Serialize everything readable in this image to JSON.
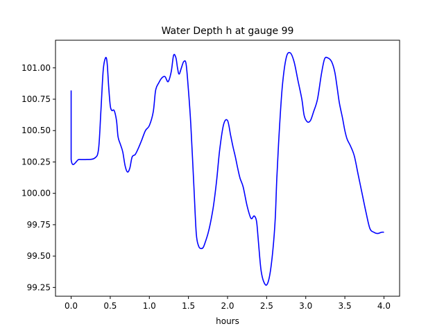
{
  "chart_data": {
    "type": "line",
    "title": "Water Depth h at gauge 99",
    "xlabel": "hours",
    "ylabel": "",
    "xlim": [
      -0.2,
      4.2
    ],
    "ylim": [
      99.18,
      101.22
    ],
    "xticks": [
      0.0,
      0.5,
      1.0,
      1.5,
      2.0,
      2.5,
      3.0,
      3.5,
      4.0
    ],
    "xtick_labels": [
      "0.0",
      "0.5",
      "1.0",
      "1.5",
      "2.0",
      "2.5",
      "3.0",
      "3.5",
      "4.0"
    ],
    "yticks": [
      99.25,
      99.5,
      99.75,
      100.0,
      100.25,
      100.5,
      100.75,
      101.0
    ],
    "ytick_labels": [
      "99.25",
      "99.50",
      "99.75",
      "100.00",
      "100.25",
      "100.50",
      "100.75",
      "101.00"
    ],
    "grid": false,
    "series": [
      {
        "color": "#0000ff",
        "x": [
          0.0,
          0.0,
          0.1,
          0.2,
          0.3,
          0.35,
          0.38,
          0.41,
          0.44,
          0.46,
          0.48,
          0.5,
          0.52,
          0.55,
          0.58,
          0.6,
          0.63,
          0.66,
          0.69,
          0.72,
          0.75,
          0.78,
          0.82,
          0.86,
          0.9,
          0.95,
          1.0,
          1.05,
          1.08,
          1.12,
          1.16,
          1.2,
          1.24,
          1.28,
          1.31,
          1.34,
          1.36,
          1.38,
          1.41,
          1.44,
          1.47,
          1.5,
          1.53,
          1.57,
          1.6,
          1.63,
          1.66,
          1.69,
          1.72,
          1.75,
          1.78,
          1.82,
          1.86,
          1.9,
          1.95,
          2.0,
          2.04,
          2.07,
          2.1,
          2.13,
          2.16,
          2.2,
          2.25,
          2.3,
          2.34,
          2.37,
          2.39,
          2.41,
          2.43,
          2.46,
          2.5,
          2.54,
          2.58,
          2.61,
          2.63,
          2.66,
          2.7,
          2.75,
          2.8,
          2.85,
          2.9,
          2.95,
          2.98,
          3.02,
          3.06,
          3.1,
          3.15,
          3.2,
          3.24,
          3.28,
          3.33,
          3.37,
          3.4,
          3.43,
          3.47,
          3.5,
          3.53,
          3.57,
          3.62,
          3.67,
          3.72,
          3.77,
          3.82,
          3.87,
          3.92,
          3.97,
          4.0
        ],
        "y": [
          100.82,
          100.27,
          100.27,
          100.27,
          100.28,
          100.35,
          100.65,
          100.98,
          101.08,
          101.04,
          100.85,
          100.7,
          100.66,
          100.66,
          100.58,
          100.45,
          100.39,
          100.33,
          100.22,
          100.17,
          100.2,
          100.29,
          100.31,
          100.36,
          100.42,
          100.5,
          100.54,
          100.65,
          100.82,
          100.88,
          100.92,
          100.93,
          100.89,
          100.97,
          101.1,
          101.08,
          101.0,
          100.95,
          101.0,
          101.05,
          101.03,
          100.82,
          100.55,
          100.05,
          99.68,
          99.58,
          99.56,
          99.57,
          99.62,
          99.68,
          99.76,
          99.9,
          100.1,
          100.35,
          100.55,
          100.58,
          100.46,
          100.37,
          100.29,
          100.2,
          100.12,
          100.05,
          99.9,
          99.8,
          99.82,
          99.78,
          99.65,
          99.5,
          99.38,
          99.3,
          99.27,
          99.35,
          99.55,
          99.8,
          100.12,
          100.48,
          100.85,
          101.08,
          101.12,
          101.05,
          100.9,
          100.75,
          100.62,
          100.57,
          100.58,
          100.65,
          100.75,
          100.95,
          101.07,
          101.08,
          101.05,
          100.97,
          100.85,
          100.72,
          100.6,
          100.5,
          100.43,
          100.38,
          100.3,
          100.15,
          100.0,
          99.85,
          99.72,
          99.69,
          99.68,
          99.69,
          99.69
        ]
      }
    ]
  }
}
